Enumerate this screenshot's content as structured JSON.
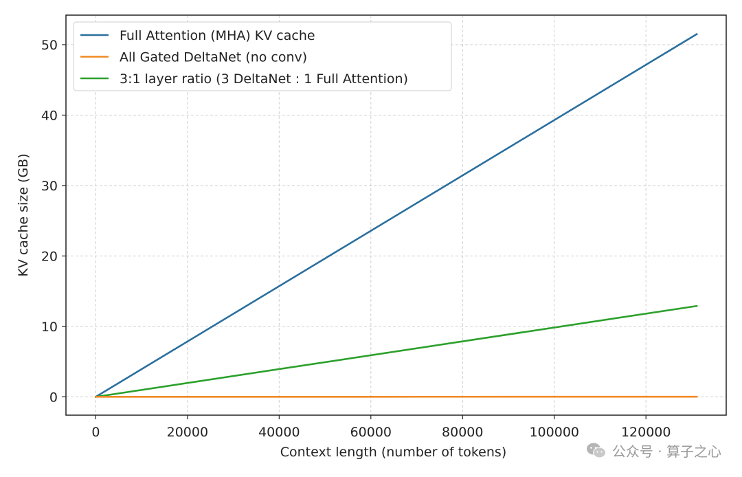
{
  "chart_data": {
    "type": "line",
    "xlabel": "Context length (number of tokens)",
    "ylabel": "KV cache size (GB)",
    "xlim": [
      -6500,
      137500
    ],
    "ylim": [
      -2.6,
      54.2
    ],
    "xticks": [
      0,
      20000,
      40000,
      60000,
      80000,
      100000,
      120000
    ],
    "xtick_labels": [
      "0",
      "20000",
      "40000",
      "60000",
      "80000",
      "100000",
      "120000"
    ],
    "yticks": [
      0,
      10,
      20,
      30,
      40,
      50
    ],
    "ytick_labels": [
      "0",
      "10",
      "20",
      "30",
      "40",
      "50"
    ],
    "grid": true,
    "legend_position": "top-left",
    "series": [
      {
        "name": "Full Attention (MHA) KV cache",
        "color": "#2a6f9e",
        "x": [
          0,
          131072
        ],
        "y": [
          0,
          51.5
        ]
      },
      {
        "name": "All Gated DeltaNet (no conv)",
        "color": "#f08a24",
        "x": [
          0,
          131072
        ],
        "y": [
          0,
          0.02
        ]
      },
      {
        "name": "3:1 layer ratio (3 DeltaNet : 1 Full Attention)",
        "color": "#2ca02c",
        "x": [
          0,
          131072
        ],
        "y": [
          0,
          12.9
        ]
      }
    ]
  },
  "watermark": {
    "text": "公众号 · 算子之心",
    "icon": "wechat-icon"
  }
}
